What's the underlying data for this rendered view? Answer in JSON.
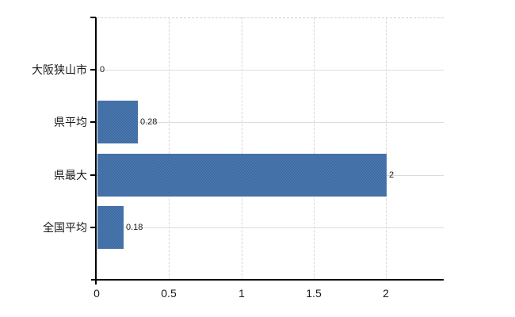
{
  "chart_data": {
    "type": "bar",
    "orientation": "horizontal",
    "title": "",
    "xlabel": "",
    "ylabel": "",
    "categories": [
      "大阪狭山市",
      "県平均",
      "県最大",
      "全国平均"
    ],
    "values": [
      0,
      0.28,
      2,
      0.18
    ],
    "value_labels": [
      "0",
      "0.28",
      "2",
      "0.18"
    ],
    "x_ticks": [
      0,
      0.5,
      1,
      1.5,
      2
    ],
    "x_tick_labels": [
      "0",
      "0.5",
      "1",
      "1.5",
      "2"
    ],
    "x_gridline_values": [
      0.5,
      1,
      1.5,
      2
    ],
    "xlim": [
      0,
      2.4
    ],
    "grid": true,
    "legend": false,
    "colors": {
      "bar": "#4473ab",
      "bar_dither_dark": "#3b689f",
      "bar_dither_light": "#4e7ab2",
      "horizontal_gridline": "#d8e0d4",
      "vertical_gridline": "#dcd2dc",
      "axis": "#000000",
      "text": "#1a1a1a",
      "background": "#ffffff"
    }
  }
}
